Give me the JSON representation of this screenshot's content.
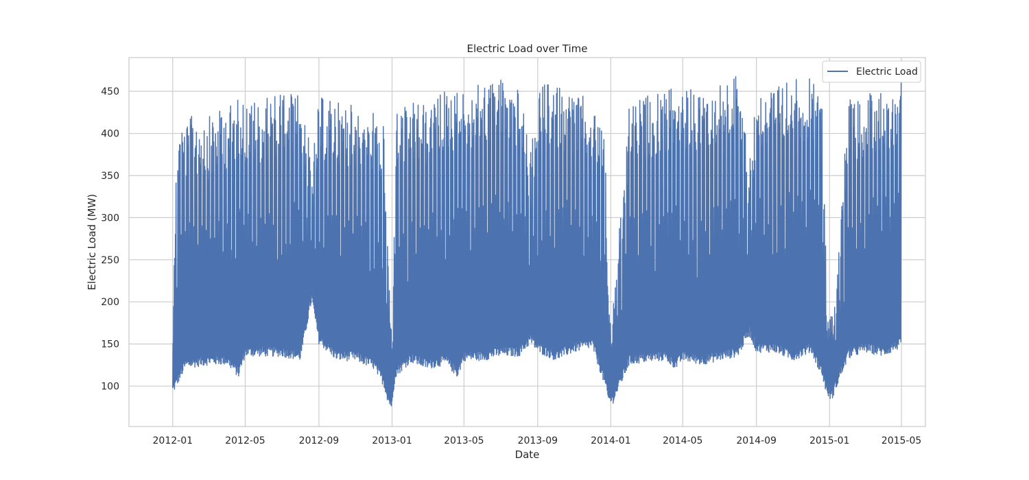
{
  "chart_data": {
    "type": "line",
    "title": "Electric Load over Time",
    "xlabel": "Date",
    "ylabel": "Electric Load (MW)",
    "x_ticks": [
      "2012-01",
      "2012-05",
      "2012-09",
      "2013-01",
      "2013-05",
      "2013-09",
      "2014-01",
      "2014-05",
      "2014-09",
      "2015-01",
      "2015-05"
    ],
    "y_ticks": [
      100,
      150,
      200,
      250,
      300,
      350,
      400,
      450
    ],
    "xlim": [
      "2011-10-20",
      "2015-06-10"
    ],
    "ylim": [
      52,
      490
    ],
    "grid": true,
    "legend_position": "top-right",
    "colors": {
      "series": "#4c72b0",
      "grid": "#cccccc",
      "frame": "#cccccc",
      "text": "#262626"
    },
    "series": [
      {
        "name": "Electric Load",
        "sampling": "approximate daily minimum and maximum load, read from the plot",
        "x": [
          "2012-01-01",
          "2012-01-08",
          "2012-01-22",
          "2012-02-05",
          "2012-03-01",
          "2012-04-01",
          "2012-04-20",
          "2012-05-01",
          "2012-06-01",
          "2012-07-01",
          "2012-08-01",
          "2012-08-20",
          "2012-09-01",
          "2012-10-01",
          "2012-11-01",
          "2012-12-01",
          "2012-12-18",
          "2012-12-26",
          "2013-01-01",
          "2013-01-06",
          "2013-02-01",
          "2013-03-01",
          "2013-04-01",
          "2013-04-20",
          "2013-05-01",
          "2013-06-01",
          "2013-07-01",
          "2013-08-01",
          "2013-08-20",
          "2013-09-01",
          "2013-10-01",
          "2013-11-01",
          "2013-12-01",
          "2013-12-22",
          "2013-12-28",
          "2014-01-04",
          "2014-02-01",
          "2014-03-01",
          "2014-04-01",
          "2014-04-20",
          "2014-05-01",
          "2014-06-01",
          "2014-07-01",
          "2014-08-01",
          "2014-08-20",
          "2014-09-01",
          "2014-10-01",
          "2014-11-01",
          "2014-12-01",
          "2014-12-20",
          "2014-12-27",
          "2015-01-04",
          "2015-02-01",
          "2015-03-01",
          "2015-04-01",
          "2015-04-30"
        ],
        "min": [
          90,
          100,
          120,
          122,
          125,
          125,
          110,
          135,
          135,
          135,
          130,
          200,
          150,
          130,
          130,
          120,
          100,
          78,
          72,
          110,
          128,
          120,
          125,
          110,
          130,
          130,
          135,
          135,
          150,
          140,
          130,
          140,
          145,
          100,
          80,
          78,
          125,
          128,
          130,
          120,
          130,
          125,
          130,
          135,
          160,
          140,
          140,
          130,
          140,
          110,
          90,
          82,
          132,
          140,
          135,
          145
        ],
        "max": [
          245,
          415,
          412,
          424,
          420,
          432,
          443,
          438,
          440,
          453,
          446,
          372,
          443,
          438,
          433,
          430,
          410,
          240,
          150,
          426,
          438,
          436,
          455,
          450,
          450,
          460,
          467,
          455,
          378,
          460,
          458,
          448,
          440,
          415,
          200,
          190,
          438,
          445,
          450,
          455,
          452,
          455,
          460,
          470,
          378,
          450,
          456,
          465,
          465,
          436,
          220,
          180,
          440,
          445,
          455,
          462
        ]
      }
    ]
  }
}
